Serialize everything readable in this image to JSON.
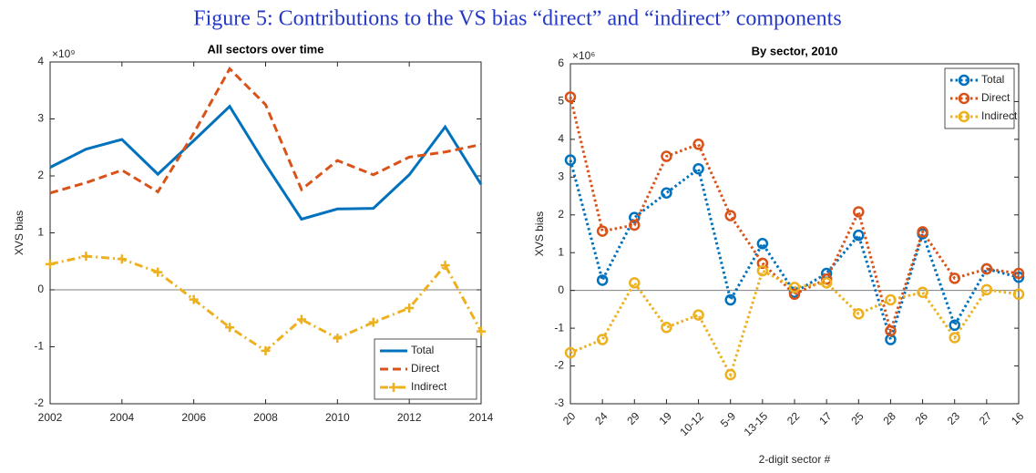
{
  "title": "Figure 5: Contributions to the VS bias “direct” and “indirect” components",
  "chart_data": [
    {
      "type": "line",
      "title": "All sectors over time",
      "y_label": "XVS bias",
      "y_scale_label": "×10⁹",
      "x": [
        2002,
        2003,
        2004,
        2005,
        2006,
        2007,
        2008,
        2009,
        2010,
        2011,
        2012,
        2013,
        2014
      ],
      "xlim": [
        2002,
        2014
      ],
      "xticks": [
        2002,
        2004,
        2006,
        2008,
        2010,
        2012,
        2014
      ],
      "ylim": [
        -2,
        4
      ],
      "yticks": [
        -2,
        -1,
        0,
        1,
        2,
        3,
        4
      ],
      "legend": "lower right",
      "series": [
        {
          "name": "Total",
          "color": "#0072bd",
          "line_style": "solid",
          "marker": null,
          "values": [
            2.15,
            2.47,
            2.64,
            2.03,
            2.62,
            3.22,
            2.2,
            1.24,
            1.42,
            1.43,
            2.02,
            2.86,
            1.85
          ]
        },
        {
          "name": "Direct",
          "color": "#d95319",
          "line_style": "dashed",
          "marker": null,
          "values": [
            1.7,
            1.88,
            2.1,
            1.72,
            2.75,
            3.88,
            3.25,
            1.76,
            2.27,
            2.02,
            2.33,
            2.42,
            2.55
          ]
        },
        {
          "name": "Indirect",
          "color": "#edb120",
          "line_style": "dashdot",
          "marker": "plus",
          "values": [
            0.45,
            0.59,
            0.54,
            0.31,
            -0.17,
            -0.66,
            -1.07,
            -0.52,
            -0.85,
            -0.57,
            -0.32,
            0.43,
            -0.73
          ]
        }
      ]
    },
    {
      "type": "line",
      "title": "By sector, 2010",
      "y_label": "XVS bias",
      "x_label": "2-digit sector #",
      "y_scale_label": "×10⁶",
      "categories": [
        "20",
        "24",
        "29",
        "19",
        "10-12",
        "5-9",
        "13-15",
        "22",
        "17",
        "25",
        "28",
        "26",
        "23",
        "27",
        "16"
      ],
      "ylim": [
        -3,
        6
      ],
      "yticks": [
        -3,
        -2,
        -1,
        0,
        1,
        2,
        3,
        4,
        5,
        6
      ],
      "legend": "upper right",
      "series": [
        {
          "name": "Total",
          "color": "#0072bd",
          "line_style": "dotted",
          "marker": "circle",
          "values": [
            3.45,
            0.27,
            1.93,
            2.58,
            3.22,
            -0.25,
            1.24,
            -0.05,
            0.45,
            1.46,
            -1.3,
            1.5,
            -0.92,
            0.57,
            0.35
          ]
        },
        {
          "name": "Direct",
          "color": "#d95319",
          "line_style": "dotted",
          "marker": "circle",
          "values": [
            5.12,
            1.57,
            1.73,
            3.55,
            3.87,
            1.98,
            0.72,
            -0.1,
            0.3,
            2.08,
            -1.07,
            1.55,
            0.32,
            0.57,
            0.45
          ]
        },
        {
          "name": "Indirect",
          "color": "#edb120",
          "line_style": "dotted",
          "marker": "circle",
          "values": [
            -1.65,
            -1.3,
            0.2,
            -0.98,
            -0.65,
            -2.23,
            0.52,
            0.08,
            0.2,
            -0.62,
            -0.25,
            -0.05,
            -1.25,
            0.02,
            -0.1
          ]
        }
      ]
    }
  ]
}
